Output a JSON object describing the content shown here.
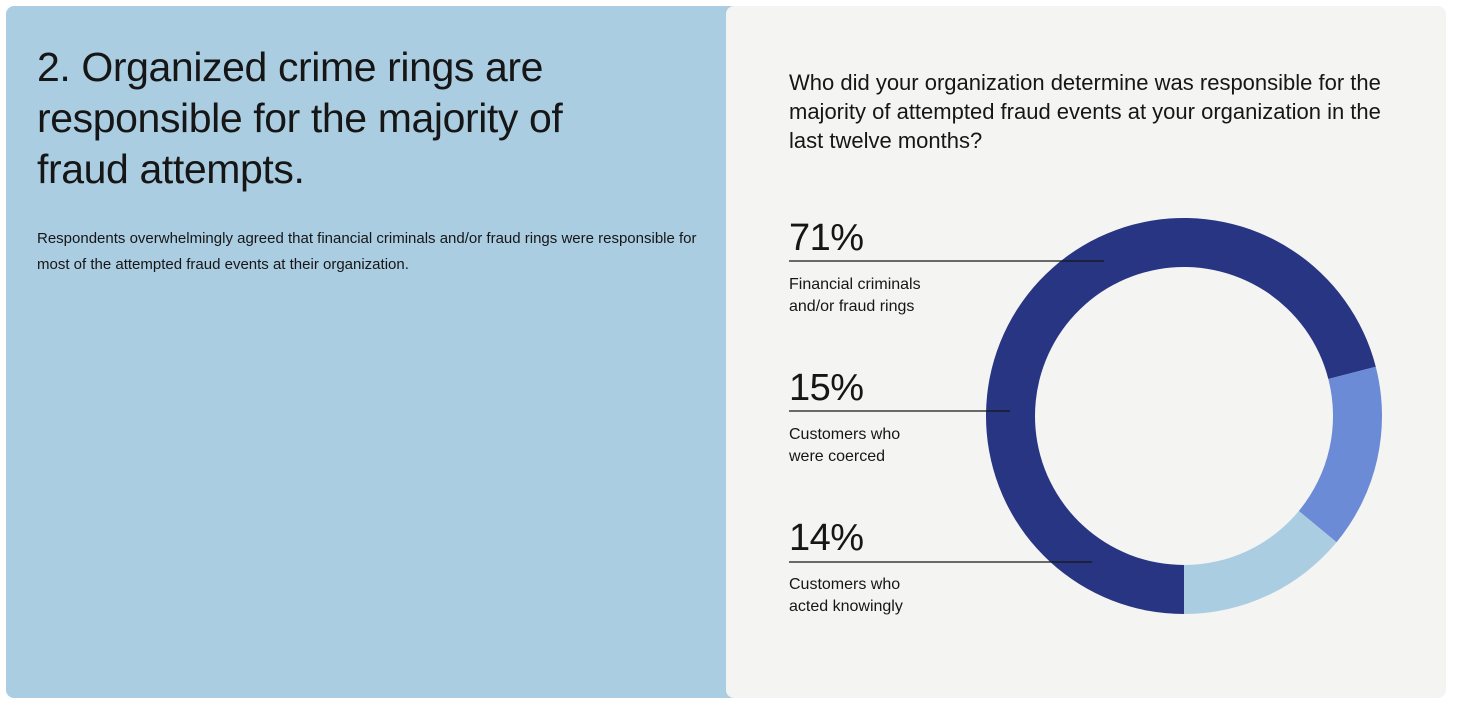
{
  "left": {
    "headline": "2. Organized crime rings are responsible for the majority of fraud attempts.",
    "description": "Respondents overwhelmingly agreed that financial criminals and/or fraud rings were responsible for most of the attempted fraud events at their organization."
  },
  "right": {
    "question": "Who did your organization determine was responsible for the majority of attempted fraud events at your organization in the last twelve months?"
  },
  "colors": {
    "left_background": "#abcde2",
    "right_background": "#f4f4f3",
    "leader_line": "#161616"
  },
  "chart_data": {
    "type": "pie",
    "variant": "donut",
    "title": "Who did your organization determine was responsible for the majority of attempted fraud events at your organization in the last twelve months?",
    "unit": "%",
    "slices": [
      {
        "label": "Financial criminals and/or fraud rings",
        "value": 71,
        "display": "71%",
        "label_lines": [
          "Financial criminals",
          "and/or fraud rings"
        ],
        "color": "#283583"
      },
      {
        "label": "Customers who were coerced",
        "value": 15,
        "display": "15%",
        "label_lines": [
          "Customers who",
          "were coerced"
        ],
        "color": "#6c8bd7"
      },
      {
        "label": "Customers who acted knowingly",
        "value": 14,
        "display": "14%",
        "label_lines": [
          "Customers who",
          "acted knowingly"
        ],
        "color": "#abcde2"
      }
    ],
    "start": "bottom",
    "direction": "clockwise"
  }
}
